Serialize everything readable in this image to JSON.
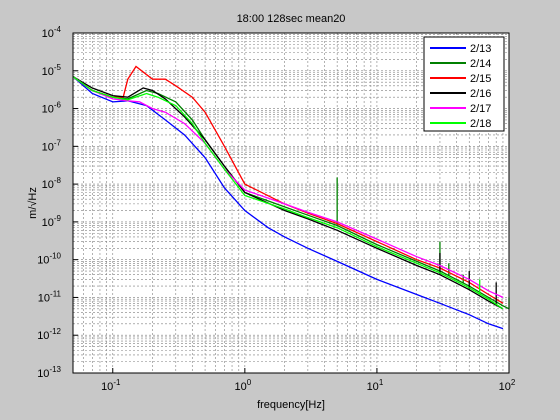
{
  "chart_data": {
    "type": "line",
    "title": "18:00 128sec mean20",
    "xlabel": "frequency[Hz]",
    "ylabel": "m/√Hz",
    "xscale": "log",
    "yscale": "log",
    "xlim": [
      0.05,
      100
    ],
    "ylim": [
      1e-13,
      0.0001
    ],
    "grid": true,
    "legend_position": "top-right",
    "x_ticks": [
      {
        "value": 0.1,
        "base": "10",
        "exp": "-1"
      },
      {
        "value": 1,
        "base": "10",
        "exp": "0"
      },
      {
        "value": 10,
        "base": "10",
        "exp": "1"
      },
      {
        "value": 100,
        "base": "10",
        "exp": "2"
      }
    ],
    "y_ticks": [
      {
        "value": 1e-13,
        "base": "10",
        "exp": "-13"
      },
      {
        "value": 1e-12,
        "base": "10",
        "exp": "-12"
      },
      {
        "value": 1e-11,
        "base": "10",
        "exp": "-11"
      },
      {
        "value": 1e-10,
        "base": "10",
        "exp": "-10"
      },
      {
        "value": 1e-09,
        "base": "10",
        "exp": "-9"
      },
      {
        "value": 1e-08,
        "base": "10",
        "exp": "-8"
      },
      {
        "value": 1e-07,
        "base": "10",
        "exp": "-7"
      },
      {
        "value": 1e-06,
        "base": "10",
        "exp": "-6"
      },
      {
        "value": 1e-05,
        "base": "10",
        "exp": "-5"
      },
      {
        "value": 0.0001,
        "base": "10",
        "exp": "-4"
      }
    ],
    "series": [
      {
        "name": "2/13",
        "color": "#0000ff",
        "points": [
          [
            0.05,
            7e-06
          ],
          [
            0.07,
            2.5e-06
          ],
          [
            0.1,
            1.5e-06
          ],
          [
            0.13,
            1.6e-06
          ],
          [
            0.18,
            1.2e-06
          ],
          [
            0.25,
            5e-07
          ],
          [
            0.35,
            2e-07
          ],
          [
            0.5,
            5e-08
          ],
          [
            0.7,
            8e-09
          ],
          [
            1.0,
            2e-09
          ],
          [
            1.5,
            7e-10
          ],
          [
            2,
            4e-10
          ],
          [
            3,
            2e-10
          ],
          [
            5,
            9e-11
          ],
          [
            10,
            3e-11
          ],
          [
            20,
            1.2e-11
          ],
          [
            30,
            7e-12
          ],
          [
            50,
            3.5e-12
          ],
          [
            70,
            2e-12
          ],
          [
            90,
            1.5e-12
          ]
        ]
      },
      {
        "name": "2/14",
        "color": "#008000",
        "points": [
          [
            0.05,
            7e-06
          ],
          [
            0.07,
            3e-06
          ],
          [
            0.1,
            2e-06
          ],
          [
            0.13,
            1.8e-06
          ],
          [
            0.18,
            3e-06
          ],
          [
            0.22,
            2.5e-06
          ],
          [
            0.3,
            1.5e-06
          ],
          [
            0.4,
            5e-07
          ],
          [
            0.5,
            1.5e-07
          ],
          [
            0.7,
            3e-08
          ],
          [
            1.0,
            6e-09
          ],
          [
            2,
            2.5e-09
          ],
          [
            3,
            1.5e-09
          ],
          [
            5,
            8e-10
          ],
          [
            10,
            2.5e-10
          ],
          [
            20,
            9e-11
          ],
          [
            30,
            5e-11
          ],
          [
            50,
            2e-11
          ],
          [
            70,
            1e-11
          ],
          [
            90,
            6e-12
          ],
          [
            100,
            5e-12
          ]
        ],
        "spikes": [
          [
            5,
            1.5e-08
          ],
          [
            30,
            3e-10
          ],
          [
            35,
            8e-11
          ],
          [
            45,
            4e-11
          ]
        ]
      },
      {
        "name": "2/15",
        "color": "#ff0000",
        "points": [
          [
            0.05,
            7e-06
          ],
          [
            0.07,
            3e-06
          ],
          [
            0.1,
            2e-06
          ],
          [
            0.12,
            2e-06
          ],
          [
            0.13,
            6e-06
          ],
          [
            0.15,
            1.3e-05
          ],
          [
            0.2,
            6e-06
          ],
          [
            0.25,
            6e-06
          ],
          [
            0.3,
            4e-06
          ],
          [
            0.4,
            2e-06
          ],
          [
            0.5,
            8e-07
          ],
          [
            0.7,
            1e-07
          ],
          [
            1.0,
            1e-08
          ],
          [
            2,
            3e-09
          ],
          [
            3,
            1.7e-09
          ],
          [
            5,
            9e-10
          ],
          [
            10,
            3e-10
          ],
          [
            20,
            1e-10
          ],
          [
            30,
            6e-11
          ],
          [
            50,
            2.5e-11
          ],
          [
            70,
            1.2e-11
          ],
          [
            90,
            7e-12
          ]
        ]
      },
      {
        "name": "2/16",
        "color": "#000000",
        "points": [
          [
            0.05,
            7e-06
          ],
          [
            0.07,
            3.5e-06
          ],
          [
            0.1,
            2.2e-06
          ],
          [
            0.13,
            2e-06
          ],
          [
            0.17,
            3.5e-06
          ],
          [
            0.2,
            3e-06
          ],
          [
            0.25,
            1.8e-06
          ],
          [
            0.35,
            6e-07
          ],
          [
            0.5,
            1.5e-07
          ],
          [
            0.7,
            3e-08
          ],
          [
            1.0,
            6e-09
          ],
          [
            2,
            2e-09
          ],
          [
            3,
            1.2e-09
          ],
          [
            5,
            6e-10
          ],
          [
            10,
            2e-10
          ],
          [
            20,
            7e-11
          ],
          [
            30,
            4e-11
          ],
          [
            50,
            1.6e-11
          ],
          [
            70,
            8e-12
          ],
          [
            90,
            5e-12
          ]
        ],
        "spikes": [
          [
            30,
            1.5e-10
          ],
          [
            50,
            5e-11
          ],
          [
            80,
            2.5e-11
          ]
        ]
      },
      {
        "name": "2/17",
        "color": "#ff00ff",
        "points": [
          [
            0.05,
            7e-06
          ],
          [
            0.07,
            3e-06
          ],
          [
            0.1,
            1.8e-06
          ],
          [
            0.13,
            1.6e-06
          ],
          [
            0.16,
            1.5e-06
          ],
          [
            0.2,
            1e-06
          ],
          [
            0.25,
            8e-07
          ],
          [
            0.35,
            4e-07
          ],
          [
            0.5,
            1.2e-07
          ],
          [
            0.7,
            2.5e-08
          ],
          [
            1.0,
            7e-09
          ],
          [
            2,
            3e-09
          ],
          [
            3,
            1.8e-09
          ],
          [
            5,
            1e-09
          ],
          [
            10,
            3.5e-10
          ],
          [
            20,
            1.2e-10
          ],
          [
            30,
            7e-11
          ],
          [
            50,
            3e-11
          ],
          [
            70,
            1.5e-11
          ],
          [
            90,
            1e-11
          ]
        ]
      },
      {
        "name": "2/18",
        "color": "#00ff00",
        "points": [
          [
            0.05,
            7e-06
          ],
          [
            0.07,
            3e-06
          ],
          [
            0.1,
            2e-06
          ],
          [
            0.13,
            1.7e-06
          ],
          [
            0.18,
            2.5e-06
          ],
          [
            0.22,
            2e-06
          ],
          [
            0.3,
            1.2e-06
          ],
          [
            0.4,
            4e-07
          ],
          [
            0.5,
            1.2e-07
          ],
          [
            0.7,
            2.5e-08
          ],
          [
            1.0,
            5e-09
          ],
          [
            2,
            2.2e-09
          ],
          [
            3,
            1.3e-09
          ],
          [
            5,
            7e-10
          ],
          [
            10,
            2.2e-10
          ],
          [
            20,
            8e-11
          ],
          [
            30,
            4.5e-11
          ],
          [
            50,
            1.8e-11
          ],
          [
            70,
            9e-12
          ],
          [
            90,
            5e-12
          ]
        ],
        "spikes": [
          [
            60,
            3e-11
          ],
          [
            100,
            1e-11
          ]
        ]
      }
    ]
  }
}
